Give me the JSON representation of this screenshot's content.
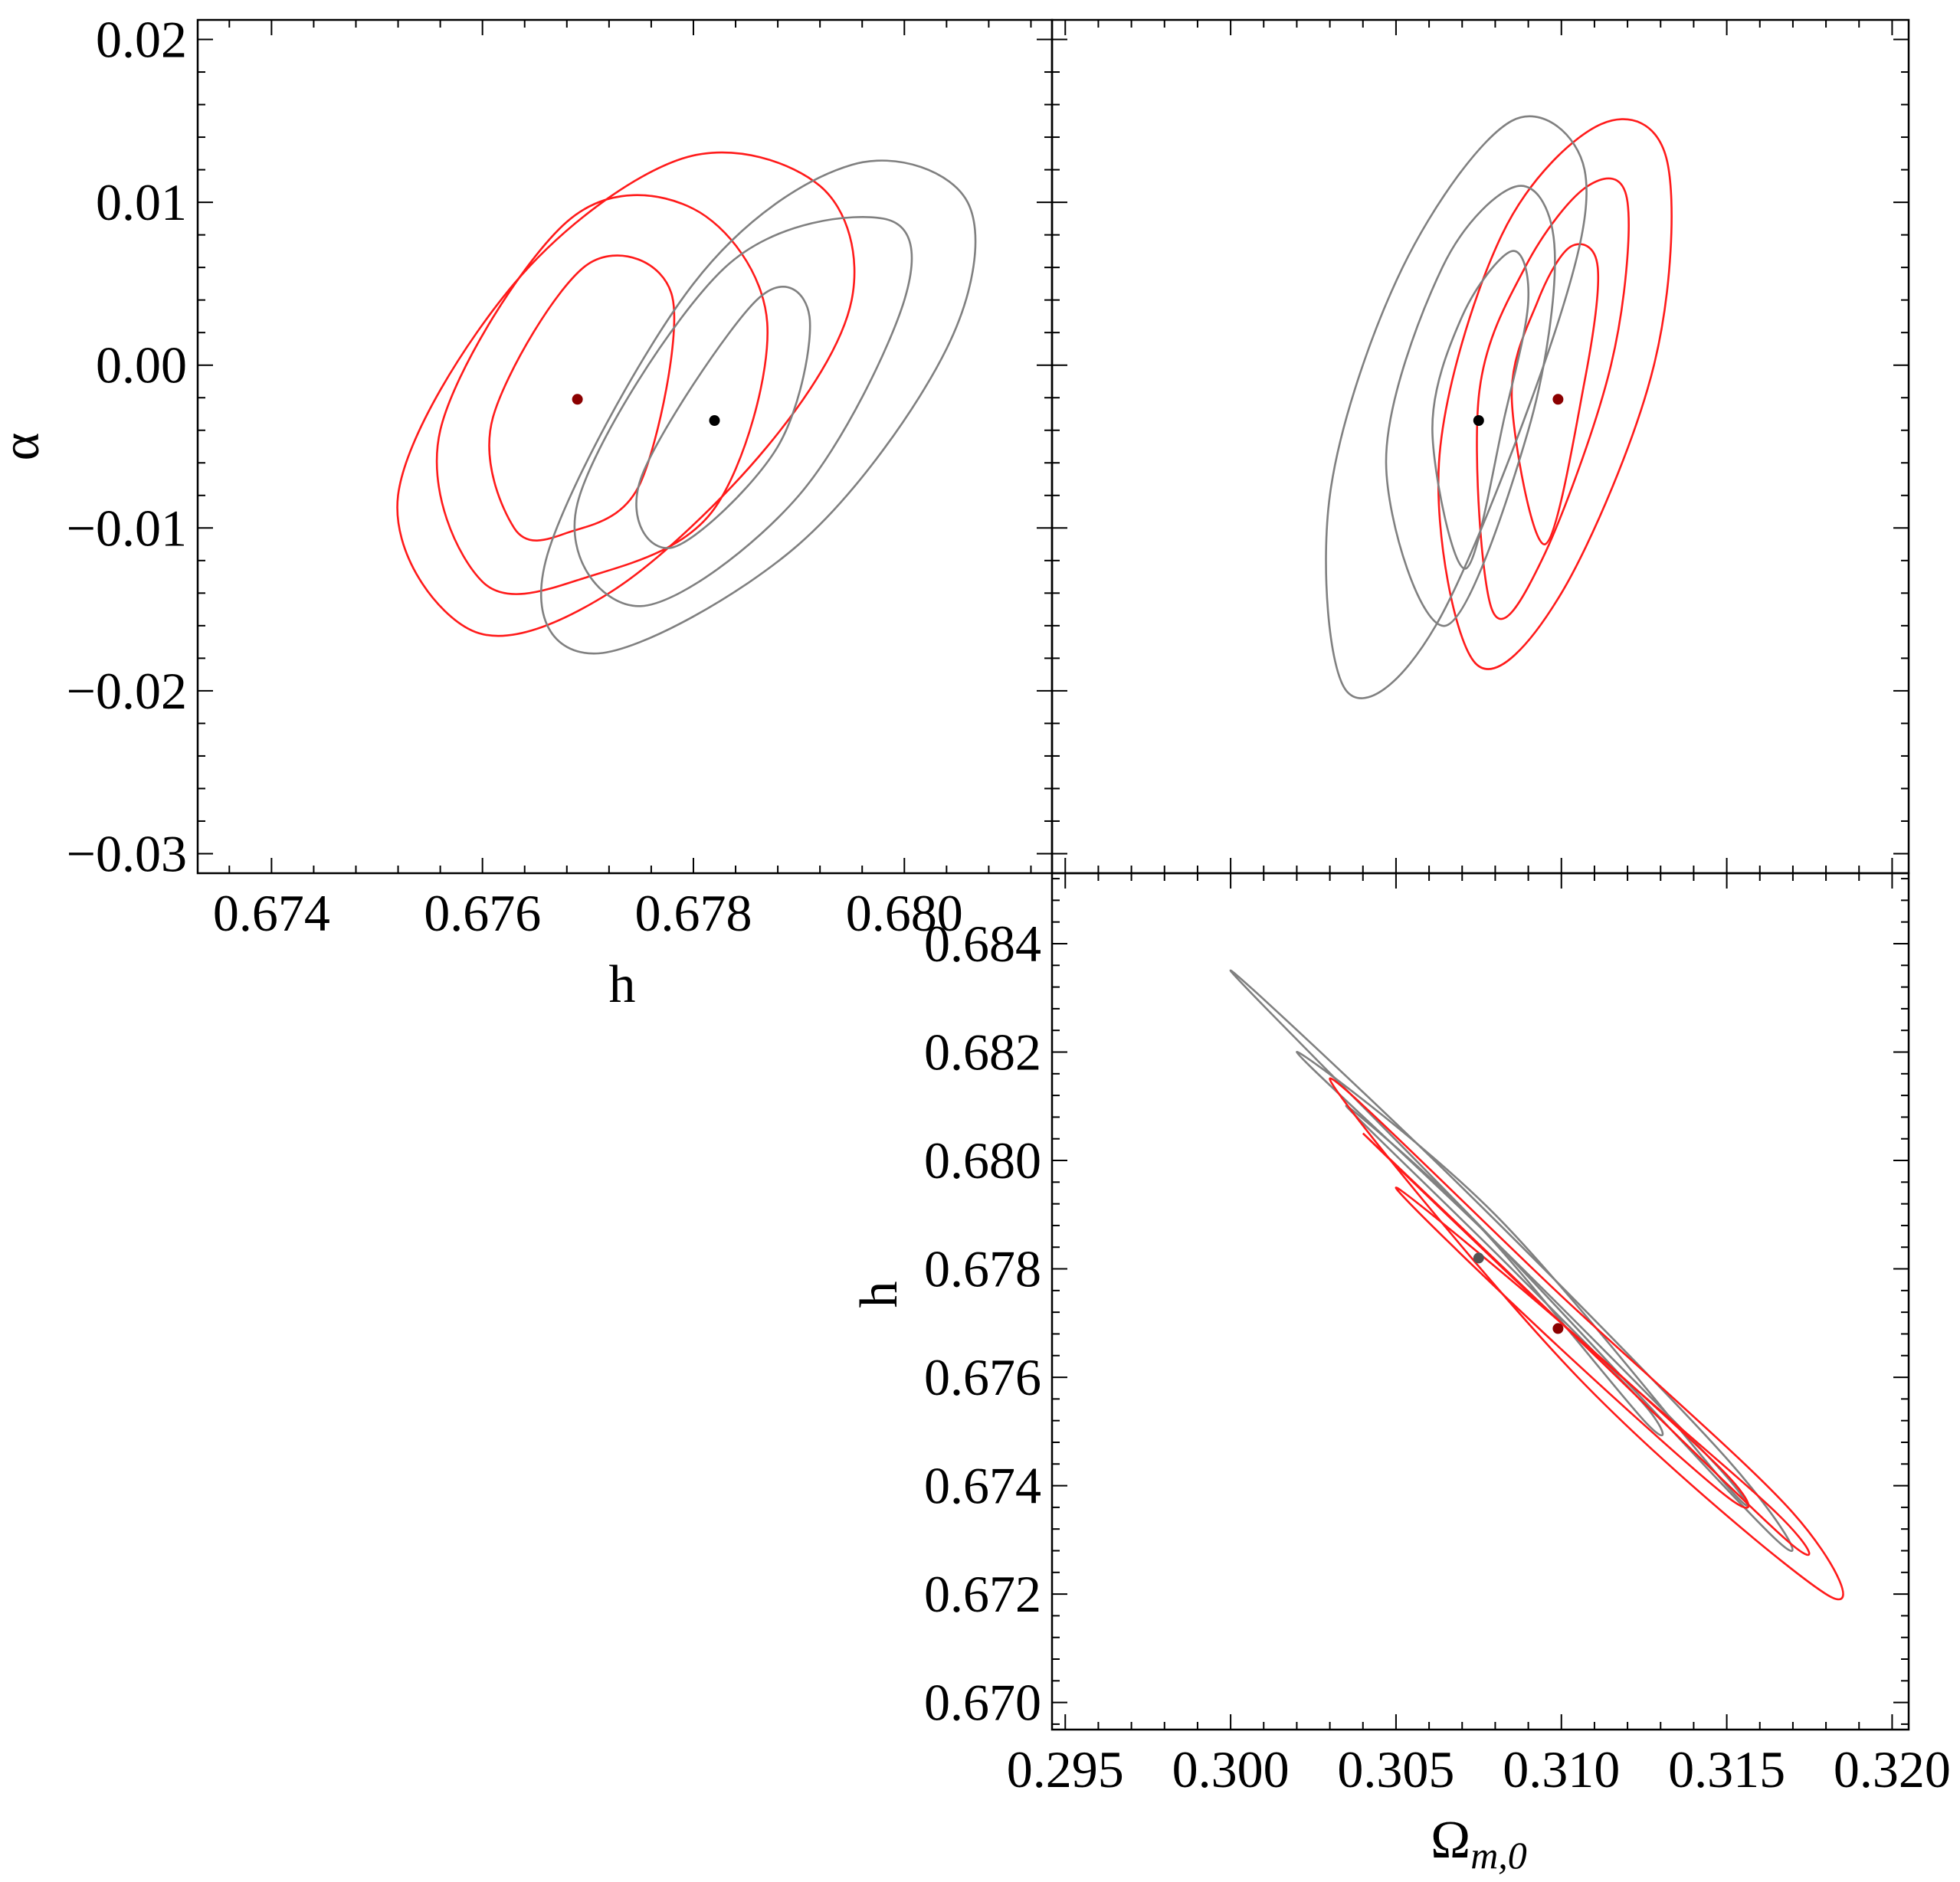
{
  "colors": {
    "red": "#ff1a1a",
    "gray": "#808080",
    "red_point": "#8b0000",
    "black_point": "#000000",
    "gray_point": "#555555"
  },
  "chart_data": [
    {
      "id": "panel-h-alpha",
      "type": "scatter",
      "xlabel": "h",
      "ylabel": "α",
      "xlim": [
        0.6733,
        0.6814
      ],
      "ylim": [
        -0.0312,
        0.0212
      ],
      "xticks": [
        0.674,
        0.676,
        0.678,
        0.68
      ],
      "xtick_labels": [
        "0.674",
        "0.676",
        "0.678",
        "0.680"
      ],
      "yticks": [
        0.02,
        0.01,
        0.0,
        -0.01,
        -0.02,
        -0.03
      ],
      "ytick_labels": [
        "0.02",
        "0.01",
        "0.00",
        "−0.01",
        "−0.02",
        "−0.03"
      ],
      "series": [
        {
          "color": "red",
          "center": [
            0.6769,
            -0.0021
          ],
          "marker_color": "red_point",
          "ellipses": [
            {
              "level": 1,
              "x": [
                0.6761,
                0.677,
                0.6778,
                0.6775,
                0.6768,
                0.6763,
                0.6761
              ],
              "y": [
                -0.0032,
                0.0062,
                0.0042,
                -0.0072,
                -0.0103,
                -0.01,
                -0.0032
              ]
            },
            {
              "level": 2,
              "x": [
                0.6756,
                0.6768,
                0.678,
                0.6787,
                0.6782,
                0.677,
                0.676,
                0.6756
              ],
              "y": [
                -0.004,
                0.0088,
                0.0096,
                0.0026,
                -0.0088,
                -0.013,
                -0.0133,
                -0.004
              ]
            },
            {
              "level": 3,
              "x": [
                0.6752,
                0.6763,
                0.6779,
                0.6792,
                0.6795,
                0.6787,
                0.6772,
                0.6759,
                0.6752
              ],
              "y": [
                -0.008,
                0.005,
                0.0127,
                0.011,
                0.004,
                -0.005,
                -0.014,
                -0.0163,
                -0.008
              ]
            }
          ]
        },
        {
          "color": "gray",
          "center": [
            0.6782,
            -0.0034
          ],
          "marker_color": "black_point",
          "ellipses": [
            {
              "level": 1,
              "x": [
                0.6775,
                0.6786,
                0.6791,
                0.6788,
                0.6778,
                0.6775
              ],
              "y": [
                -0.007,
                0.004,
                0.003,
                -0.005,
                -0.0112,
                -0.007
              ]
            },
            {
              "level": 2,
              "x": [
                0.6769,
                0.6783,
                0.6798,
                0.68,
                0.679,
                0.6775,
                0.6769
              ],
              "y": [
                -0.0085,
                0.006,
                0.009,
                0.004,
                -0.008,
                -0.0148,
                -0.0085
              ]
            },
            {
              "level": 3,
              "x": [
                0.6766,
                0.678,
                0.6795,
                0.6806,
                0.6804,
                0.679,
                0.6771,
                0.6766
              ],
              "y": [
                -0.012,
                0.005,
                0.0123,
                0.01,
                0.001,
                -0.011,
                -0.0177,
                -0.012
              ]
            }
          ]
        }
      ]
    },
    {
      "id": "panel-omega-alpha",
      "type": "scatter",
      "xlabel": "",
      "ylabel": "",
      "xlim": [
        0.2946,
        0.3205
      ],
      "ylim": [
        -0.0312,
        0.0212
      ],
      "series": [
        {
          "color": "red",
          "center": [
            0.3099,
            -0.0021
          ],
          "marker_color": "red_point",
          "ellipses": [
            {
              "level": 1,
              "x": [
                0.3085,
                0.3093,
                0.3103,
                0.3111,
                0.3107,
                0.3095,
                0.3085
              ],
              "y": [
                -0.002,
                0.004,
                0.0073,
                0.006,
                -0.001,
                -0.011,
                -0.002
              ]
            },
            {
              "level": 2,
              "x": [
                0.3075,
                0.3089,
                0.3108,
                0.312,
                0.3115,
                0.3094,
                0.3079,
                0.3075
              ],
              "y": [
                -0.002,
                0.006,
                0.011,
                0.01,
                0.0,
                -0.012,
                -0.015,
                -0.002
              ]
            },
            {
              "level": 3,
              "x": [
                0.3063,
                0.3082,
                0.3112,
                0.3132,
                0.3128,
                0.31,
                0.3074,
                0.3063
              ],
              "y": [
                -0.006,
                0.008,
                0.0148,
                0.0125,
                0.0,
                -0.014,
                -0.0183,
                -0.006
              ]
            }
          ]
        },
        {
          "color": "gray",
          "center": [
            0.3075,
            -0.0034
          ],
          "marker_color": "black_point",
          "ellipses": [
            {
              "level": 1,
              "x": [
                0.3061,
                0.307,
                0.3085,
                0.309,
                0.3083,
                0.3071,
                0.3061
              ],
              "y": [
                -0.004,
                0.003,
                0.007,
                0.004,
                -0.003,
                -0.0125,
                -0.004
              ]
            },
            {
              "level": 2,
              "x": [
                0.3047,
                0.3064,
                0.3087,
                0.3098,
                0.309,
                0.3065,
                0.3047
              ],
              "y": [
                -0.006,
                0.006,
                0.011,
                0.007,
                -0.004,
                -0.016,
                -0.006
              ]
            },
            {
              "level": 3,
              "x": [
                0.303,
                0.3052,
                0.3085,
                0.3107,
                0.3098,
                0.3062,
                0.3035,
                0.303
              ],
              "y": [
                -0.008,
                0.006,
                0.015,
                0.012,
                0.002,
                -0.016,
                -0.02,
                -0.008
              ]
            }
          ]
        }
      ]
    },
    {
      "id": "panel-omega-h",
      "type": "scatter",
      "xlabel": "Ω",
      "xlabel_sub": "m,0",
      "ylabel": "h",
      "xlim": [
        0.2946,
        0.3205
      ],
      "ylim": [
        0.6695,
        0.6853
      ],
      "xticks": [
        0.295,
        0.3,
        0.305,
        0.31,
        0.315,
        0.32
      ],
      "xtick_labels": [
        "0.295",
        "0.300",
        "0.305",
        "0.310",
        "0.315",
        "0.320"
      ],
      "yticks": [
        0.684,
        0.682,
        0.68,
        0.678,
        0.676,
        0.674,
        0.672,
        0.67
      ],
      "ytick_labels": [
        "0.684",
        "0.682",
        "0.680",
        "0.678",
        "0.676",
        "0.674",
        "0.672",
        "0.670"
      ],
      "series": [
        {
          "color": "gray",
          "center": [
            0.3075,
            0.6782
          ],
          "marker_color": "gray_point",
          "ellipses": [
            {
              "level": 1,
              "x": [
                0.3035,
                0.3085,
                0.3125,
                0.3125,
                0.3075,
                0.3035
              ],
              "y": [
                0.681,
                0.678,
                0.6755,
                0.6752,
                0.6788,
                0.681
              ]
            },
            {
              "level": 2,
              "x": [
                0.302,
                0.308,
                0.3145,
                0.315,
                0.308,
                0.302
              ],
              "y": [
                0.682,
                0.6785,
                0.6745,
                0.674,
                0.679,
                0.682
              ]
            },
            {
              "level": 3,
              "x": [
                0.3,
                0.307,
                0.315,
                0.3165,
                0.308,
                0.3
              ],
              "y": [
                0.6835,
                0.6795,
                0.6745,
                0.673,
                0.6785,
                0.6835
              ]
            }
          ]
        },
        {
          "color": "red",
          "center": [
            0.3099,
            0.6769
          ],
          "marker_color": "red_point",
          "ellipses": [
            {
              "level": 1,
              "x": [
                0.305,
                0.31,
                0.315,
                0.315,
                0.3095,
                0.305
              ],
              "y": [
                0.6795,
                0.677,
                0.6742,
                0.6738,
                0.6768,
                0.6795
              ]
            },
            {
              "level": 2,
              "x": [
                0.304,
                0.31,
                0.3165,
                0.3168,
                0.31,
                0.304
              ],
              "y": [
                0.6805,
                0.677,
                0.6735,
                0.673,
                0.677,
                0.6805
              ]
            },
            {
              "level": 3,
              "x": [
                0.303,
                0.31,
                0.317,
                0.318,
                0.3105,
                0.303
              ],
              "y": [
                0.6815,
                0.6775,
                0.6735,
                0.672,
                0.676,
                0.6815
              ]
            }
          ]
        }
      ]
    }
  ]
}
